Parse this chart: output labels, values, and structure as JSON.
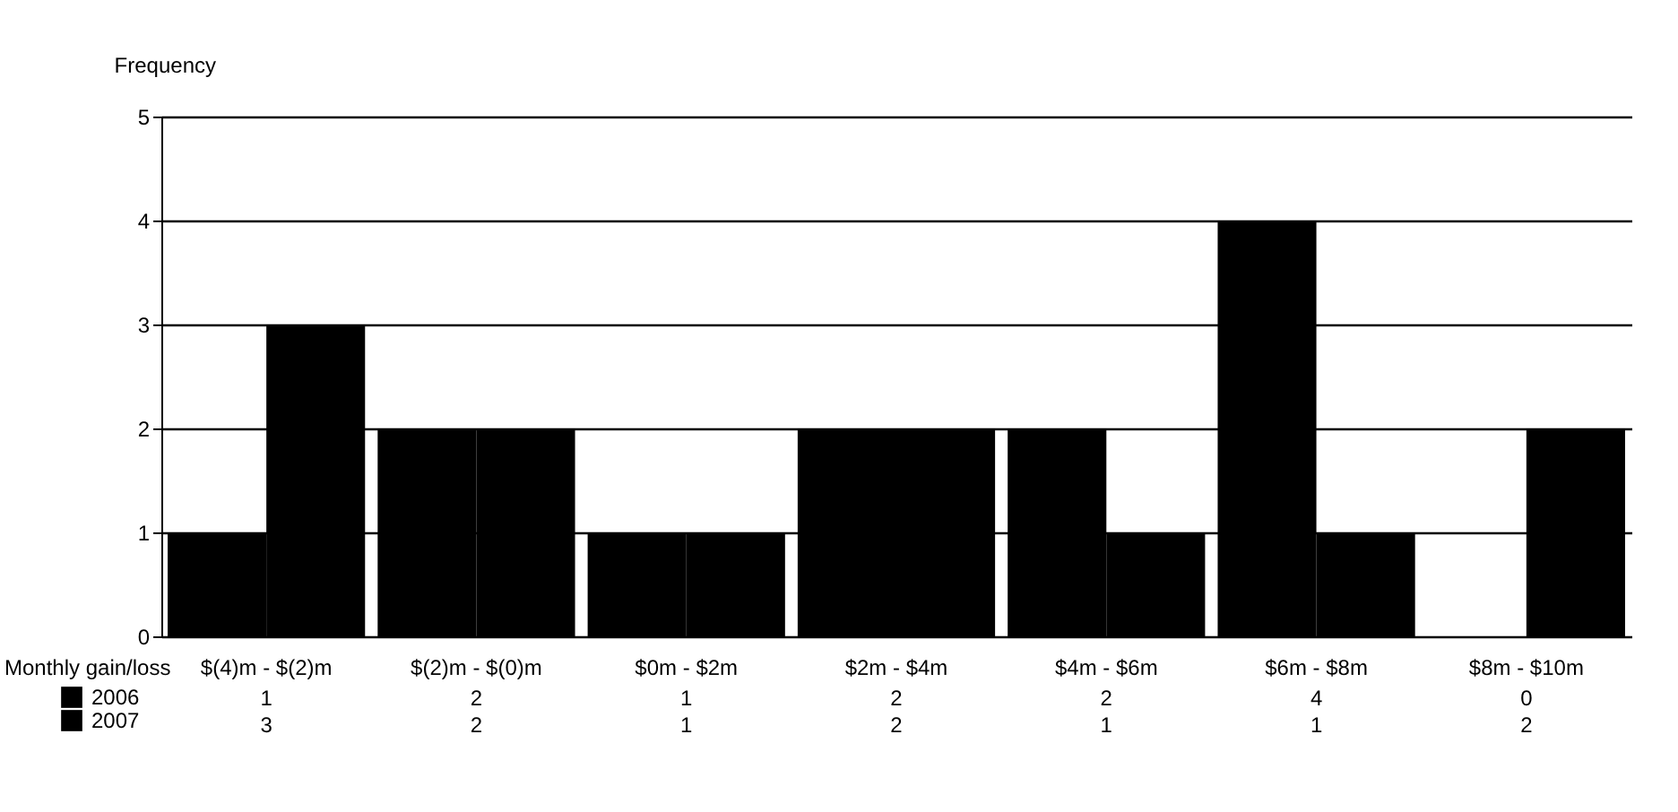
{
  "chart_data": {
    "type": "bar",
    "ylabel": "Frequency",
    "xlabel": "Monthly gain/loss",
    "categories": [
      "$(4)m - $(2)m",
      "$(2)m - $(0)m",
      "$0m - $2m",
      "$2m - $4m",
      "$4m - $6m",
      "$6m - $8m",
      "$8m - $10m"
    ],
    "series": [
      {
        "name": "2006",
        "color": "#000000",
        "values": [
          1,
          2,
          1,
          2,
          2,
          4,
          0
        ]
      },
      {
        "name": "2007",
        "color": "#000000",
        "values": [
          3,
          2,
          1,
          2,
          1,
          1,
          2
        ]
      }
    ],
    "ylim": [
      0,
      5
    ],
    "yticks": [
      0,
      1,
      2,
      3,
      4,
      5
    ],
    "grid": "y",
    "legend": "bottom left",
    "data_labels": true
  }
}
